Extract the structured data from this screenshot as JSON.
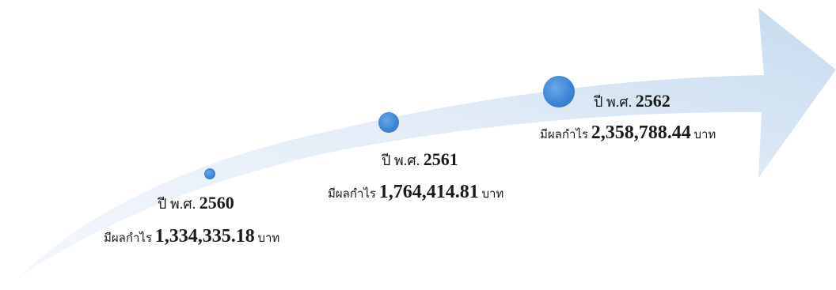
{
  "milestones": [
    {
      "year_prefix": "ปี พ.ศ.",
      "year": "2560",
      "profit_prefix": "มีผลกำไร",
      "amount": "1,334,335.18",
      "unit": "บาท"
    },
    {
      "year_prefix": "ปี พ.ศ.",
      "year": "2561",
      "profit_prefix": "มีผลกำไร",
      "amount": "1,764,414.81",
      "unit": "บาท"
    },
    {
      "year_prefix": "ปี พ.ศ.",
      "year": "2562",
      "profit_prefix": "มีผลกำไร",
      "amount": "2,358,788.44",
      "unit": "บาท"
    }
  ],
  "colors": {
    "arrow_light": "#eef4fb",
    "arrow_dark": "#c9dcf0",
    "dot": "#3d86d6"
  }
}
